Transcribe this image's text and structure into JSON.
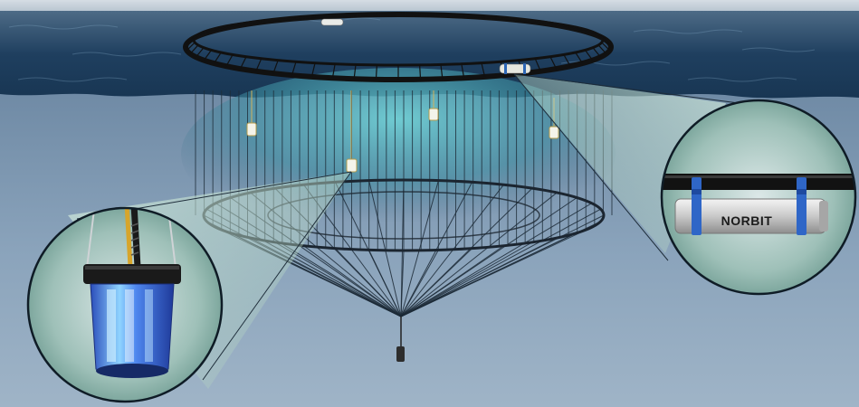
{
  "sensor_label": "NORBIT"
}
